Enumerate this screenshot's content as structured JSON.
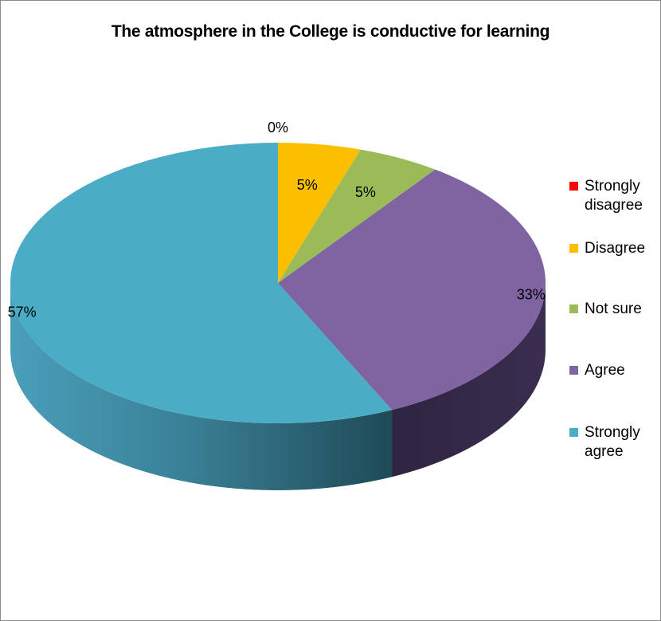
{
  "chart_data": {
    "type": "pie",
    "title": "The atmosphere in the College is conductive for learning",
    "slices": [
      {
        "label": "Strongly disagree",
        "value": 0,
        "display": "0%",
        "color": "#ff0000"
      },
      {
        "label": "Disagree",
        "value": 5,
        "display": "5%",
        "color": "#fbbf00"
      },
      {
        "label": "Not sure",
        "value": 5,
        "display": "5%",
        "color": "#9bbb59"
      },
      {
        "label": "Agree",
        "value": 33,
        "display": "33%",
        "color": "#8064a2"
      },
      {
        "label": "Strongly agree",
        "value": 57,
        "display": "57%",
        "color": "#4bacc6"
      }
    ],
    "legend_position": "right",
    "style": "3d-pie"
  }
}
